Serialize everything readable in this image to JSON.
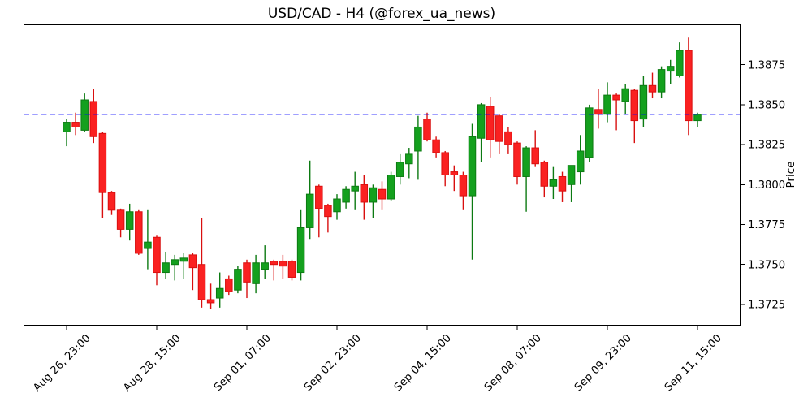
{
  "figure": {
    "title": "USD/CAD - H4 (@forex_ua_news)",
    "background": "#ffffff"
  },
  "chart_data": {
    "type": "candlestick",
    "symbol": "USD/CAD",
    "timeframe": "H4",
    "source_handle": "@forex_ua_news",
    "title": "USD/CAD - H4 (@forex_ua_news)",
    "xlabel": "",
    "ylabel": "Price",
    "grid": false,
    "legend": false,
    "ylim": [
      1.3712,
      1.39
    ],
    "yticks": [
      "1.3725",
      "1.3750",
      "1.3775",
      "1.3800",
      "1.3825",
      "1.3850",
      "1.3875"
    ],
    "ytick_values": [
      1.3725,
      1.375,
      1.3775,
      1.38,
      1.3825,
      1.385,
      1.3875
    ],
    "y_axis_side": "right",
    "xtick_rotation_deg": 45,
    "xticks": [
      {
        "index": 0,
        "label": "Aug 26, 23:00"
      },
      {
        "index": 10,
        "label": "Aug 28, 15:00"
      },
      {
        "index": 20,
        "label": "Sep 01, 07:00"
      },
      {
        "index": 30,
        "label": "Sep 02, 23:00"
      },
      {
        "index": 40,
        "label": "Sep 04, 15:00"
      },
      {
        "index": 50,
        "label": "Sep 08, 07:00"
      },
      {
        "index": 60,
        "label": "Sep 09, 23:00"
      },
      {
        "index": 70,
        "label": "Sep 11, 15:00"
      }
    ],
    "hline": {
      "value": 1.3844,
      "style": "dashed",
      "color": "#0000ff",
      "meaning": "current/last price level"
    },
    "colors": {
      "up_fill": "#14a01e",
      "up_edge": "#0c7a12",
      "down_fill": "#fa2121",
      "down_edge": "#d90f0f",
      "hline": "#0000ff",
      "axis": "#000000",
      "background": "#ffffff"
    },
    "candles_format": [
      "open",
      "high",
      "low",
      "close"
    ],
    "candles": [
      [
        1.3833,
        1.3841,
        1.3824,
        1.3839
      ],
      [
        1.3839,
        1.3845,
        1.3831,
        1.3836
      ],
      [
        1.3834,
        1.3857,
        1.3833,
        1.3853
      ],
      [
        1.3852,
        1.386,
        1.3826,
        1.383
      ],
      [
        1.3832,
        1.3833,
        1.3779,
        1.3795
      ],
      [
        1.3795,
        1.3796,
        1.3781,
        1.3784
      ],
      [
        1.3784,
        1.3785,
        1.3767,
        1.3772
      ],
      [
        1.3772,
        1.3788,
        1.3765,
        1.3783
      ],
      [
        1.3783,
        1.3784,
        1.3756,
        1.3757
      ],
      [
        1.376,
        1.3784,
        1.3747,
        1.3764
      ],
      [
        1.3767,
        1.3768,
        1.3737,
        1.3745
      ],
      [
        1.3745,
        1.3758,
        1.3741,
        1.3751
      ],
      [
        1.375,
        1.3756,
        1.374,
        1.3753
      ],
      [
        1.3752,
        1.3757,
        1.3741,
        1.3754
      ],
      [
        1.3756,
        1.3757,
        1.3734,
        1.3748
      ],
      [
        1.375,
        1.3779,
        1.3723,
        1.3728
      ],
      [
        1.3728,
        1.3738,
        1.3722,
        1.3726
      ],
      [
        1.3729,
        1.3745,
        1.3723,
        1.3735
      ],
      [
        1.3741,
        1.3743,
        1.3731,
        1.3733
      ],
      [
        1.3734,
        1.3749,
        1.3732,
        1.3747
      ],
      [
        1.3751,
        1.3753,
        1.3729,
        1.3739
      ],
      [
        1.3738,
        1.3756,
        1.3732,
        1.3751
      ],
      [
        1.3747,
        1.3762,
        1.3741,
        1.3751
      ],
      [
        1.3752,
        1.3753,
        1.374,
        1.375
      ],
      [
        1.3752,
        1.3756,
        1.3741,
        1.3749
      ],
      [
        1.3752,
        1.3753,
        1.374,
        1.3742
      ],
      [
        1.3745,
        1.3784,
        1.374,
        1.3773
      ],
      [
        1.3773,
        1.3815,
        1.3766,
        1.3794
      ],
      [
        1.3799,
        1.38,
        1.3767,
        1.3785
      ],
      [
        1.3787,
        1.3788,
        1.377,
        1.378
      ],
      [
        1.3783,
        1.3794,
        1.3778,
        1.3791
      ],
      [
        1.3789,
        1.3799,
        1.3785,
        1.3797
      ],
      [
        1.3796,
        1.3808,
        1.3784,
        1.3799
      ],
      [
        1.38,
        1.3806,
        1.3778,
        1.3789
      ],
      [
        1.3789,
        1.38,
        1.3779,
        1.3798
      ],
      [
        1.3797,
        1.3802,
        1.3784,
        1.3791
      ],
      [
        1.3791,
        1.3808,
        1.379,
        1.3806
      ],
      [
        1.3805,
        1.3819,
        1.38,
        1.3814
      ],
      [
        1.3813,
        1.3823,
        1.3804,
        1.3819
      ],
      [
        1.3821,
        1.3843,
        1.3803,
        1.3836
      ],
      [
        1.3841,
        1.3845,
        1.3827,
        1.3828
      ],
      [
        1.3828,
        1.383,
        1.3817,
        1.382
      ],
      [
        1.382,
        1.3821,
        1.3799,
        1.3806
      ],
      [
        1.3808,
        1.3812,
        1.3796,
        1.3806
      ],
      [
        1.3806,
        1.3808,
        1.3784,
        1.3793
      ],
      [
        1.3793,
        1.3838,
        1.3753,
        1.383
      ],
      [
        1.3829,
        1.3851,
        1.3814,
        1.385
      ],
      [
        1.3849,
        1.3855,
        1.3817,
        1.3828
      ],
      [
        1.3843,
        1.3844,
        1.3819,
        1.3827
      ],
      [
        1.3833,
        1.3836,
        1.3819,
        1.3825
      ],
      [
        1.3826,
        1.3827,
        1.38,
        1.3805
      ],
      [
        1.3805,
        1.3824,
        1.3783,
        1.3823
      ],
      [
        1.3823,
        1.3834,
        1.3811,
        1.3813
      ],
      [
        1.3814,
        1.3815,
        1.3792,
        1.3799
      ],
      [
        1.3799,
        1.3811,
        1.3791,
        1.3803
      ],
      [
        1.3805,
        1.3808,
        1.3789,
        1.3796
      ],
      [
        1.38,
        1.3812,
        1.3789,
        1.3812
      ],
      [
        1.3808,
        1.3831,
        1.38,
        1.3821
      ],
      [
        1.3817,
        1.385,
        1.3814,
        1.3848
      ],
      [
        1.3847,
        1.386,
        1.3835,
        1.3844
      ],
      [
        1.3844,
        1.3864,
        1.3839,
        1.3856
      ],
      [
        1.3856,
        1.3857,
        1.3834,
        1.3853
      ],
      [
        1.3852,
        1.3863,
        1.3844,
        1.386
      ],
      [
        1.3859,
        1.386,
        1.3826,
        1.384
      ],
      [
        1.3841,
        1.3868,
        1.3836,
        1.3862
      ],
      [
        1.3862,
        1.387,
        1.3854,
        1.3858
      ],
      [
        1.3858,
        1.3874,
        1.3854,
        1.3872
      ],
      [
        1.3871,
        1.3878,
        1.3863,
        1.3874
      ],
      [
        1.3868,
        1.3889,
        1.3867,
        1.3884
      ],
      [
        1.3884,
        1.3892,
        1.3831,
        1.384
      ],
      [
        1.384,
        1.3845,
        1.3836,
        1.3844
      ]
    ]
  }
}
